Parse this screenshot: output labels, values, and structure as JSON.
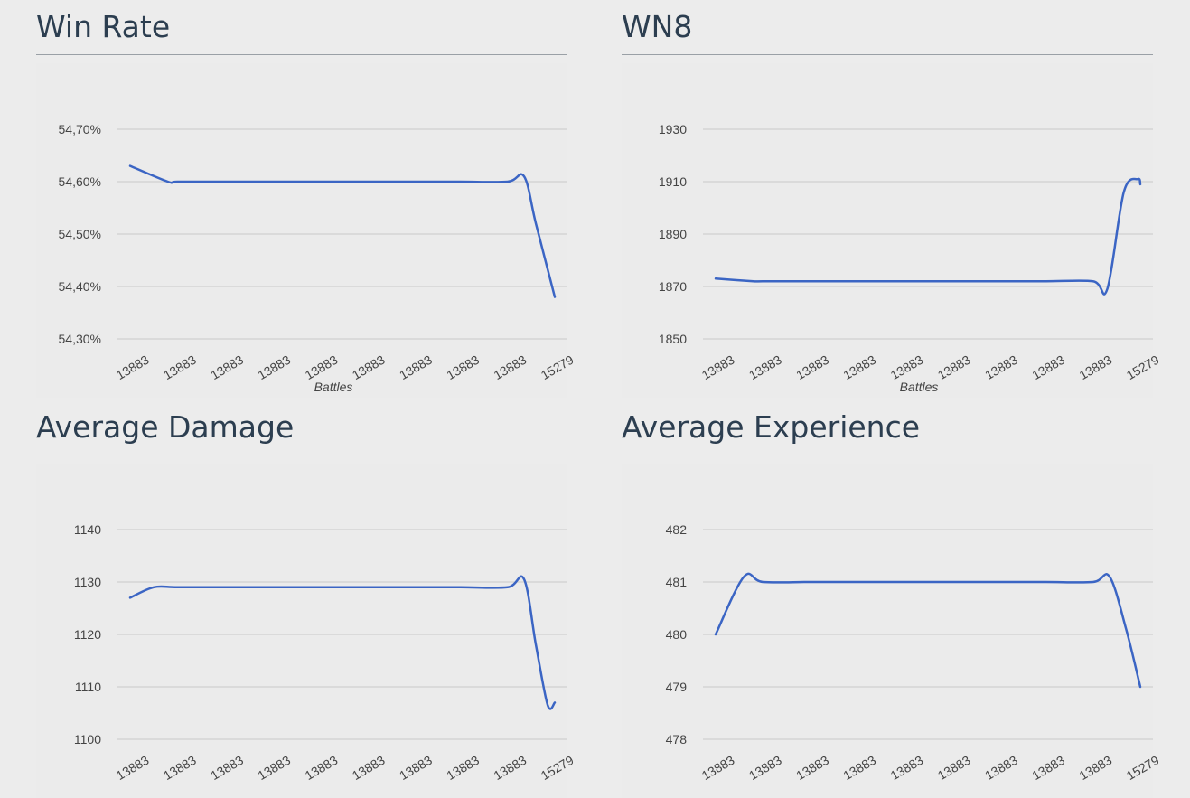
{
  "line_color": "#3b65c4",
  "chart_data": [
    {
      "type": "line",
      "title": "Win Rate",
      "xlabel": "Battles",
      "ylabel": "",
      "ylim": [
        54.3,
        54.7
      ],
      "yticks": [
        "54,70%",
        "54,60%",
        "54,50%",
        "54,40%",
        "54,30%"
      ],
      "ytick_values": [
        54.7,
        54.6,
        54.5,
        54.4,
        54.3
      ],
      "categories": [
        "13883",
        "13883",
        "13883",
        "13883",
        "13883",
        "13883",
        "13883",
        "13883",
        "13883",
        "15279"
      ],
      "x": [
        0,
        0.8,
        1,
        2,
        3,
        4,
        5,
        6,
        7,
        8,
        8.35,
        8.6,
        9
      ],
      "values": [
        54.63,
        54.6,
        54.6,
        54.6,
        54.6,
        54.6,
        54.6,
        54.6,
        54.6,
        54.6,
        54.61,
        54.52,
        54.38
      ],
      "grid": true
    },
    {
      "type": "line",
      "title": "WN8",
      "xlabel": "Battles",
      "ylabel": "",
      "ylim": [
        1850,
        1930
      ],
      "yticks": [
        "1930",
        "1910",
        "1890",
        "1870",
        "1850"
      ],
      "ytick_values": [
        1930,
        1910,
        1890,
        1870,
        1850
      ],
      "categories": [
        "13883",
        "13883",
        "13883",
        "13883",
        "13883",
        "13883",
        "13883",
        "13883",
        "13883",
        "15279"
      ],
      "x": [
        0,
        0.8,
        1,
        2,
        3,
        4,
        5,
        6,
        7,
        8,
        8.3,
        8.65,
        8.95,
        9
      ],
      "values": [
        1873,
        1872,
        1872,
        1872,
        1872,
        1872,
        1872,
        1872,
        1872,
        1872,
        1869,
        1906,
        1911,
        1909
      ],
      "grid": true
    },
    {
      "type": "line",
      "title": "Average Damage",
      "xlabel": "",
      "ylabel": "",
      "ylim": [
        1100,
        1140
      ],
      "yticks": [
        "1140",
        "1130",
        "1120",
        "1110",
        "1100"
      ],
      "ytick_values": [
        1140,
        1130,
        1120,
        1110,
        1100
      ],
      "categories": [
        "13883",
        "13883",
        "13883",
        "13883",
        "13883",
        "13883",
        "13883",
        "13883",
        "13883",
        "15279"
      ],
      "x": [
        0,
        0.5,
        1,
        2,
        3,
        4,
        5,
        6,
        7,
        8,
        8.35,
        8.6,
        8.85,
        9
      ],
      "values": [
        1127,
        1129,
        1129,
        1129,
        1129,
        1129,
        1129,
        1129,
        1129,
        1129,
        1130.5,
        1118,
        1106.5,
        1107
      ],
      "grid": true
    },
    {
      "type": "line",
      "title": "Average Experience",
      "xlabel": "",
      "ylabel": "",
      "ylim": [
        478,
        482
      ],
      "yticks": [
        "482",
        "481",
        "480",
        "479",
        "478"
      ],
      "ytick_values": [
        482,
        481,
        480,
        479,
        478
      ],
      "categories": [
        "13883",
        "13883",
        "13883",
        "13883",
        "13883",
        "13883",
        "13883",
        "13883",
        "13883",
        "15279"
      ],
      "x": [
        0,
        0.6,
        1,
        2,
        3,
        4,
        5,
        6,
        7,
        8,
        8.35,
        8.7,
        9
      ],
      "values": [
        480,
        481.1,
        481,
        481,
        481,
        481,
        481,
        481,
        481,
        481,
        481.1,
        480.1,
        479
      ],
      "grid": true
    }
  ]
}
